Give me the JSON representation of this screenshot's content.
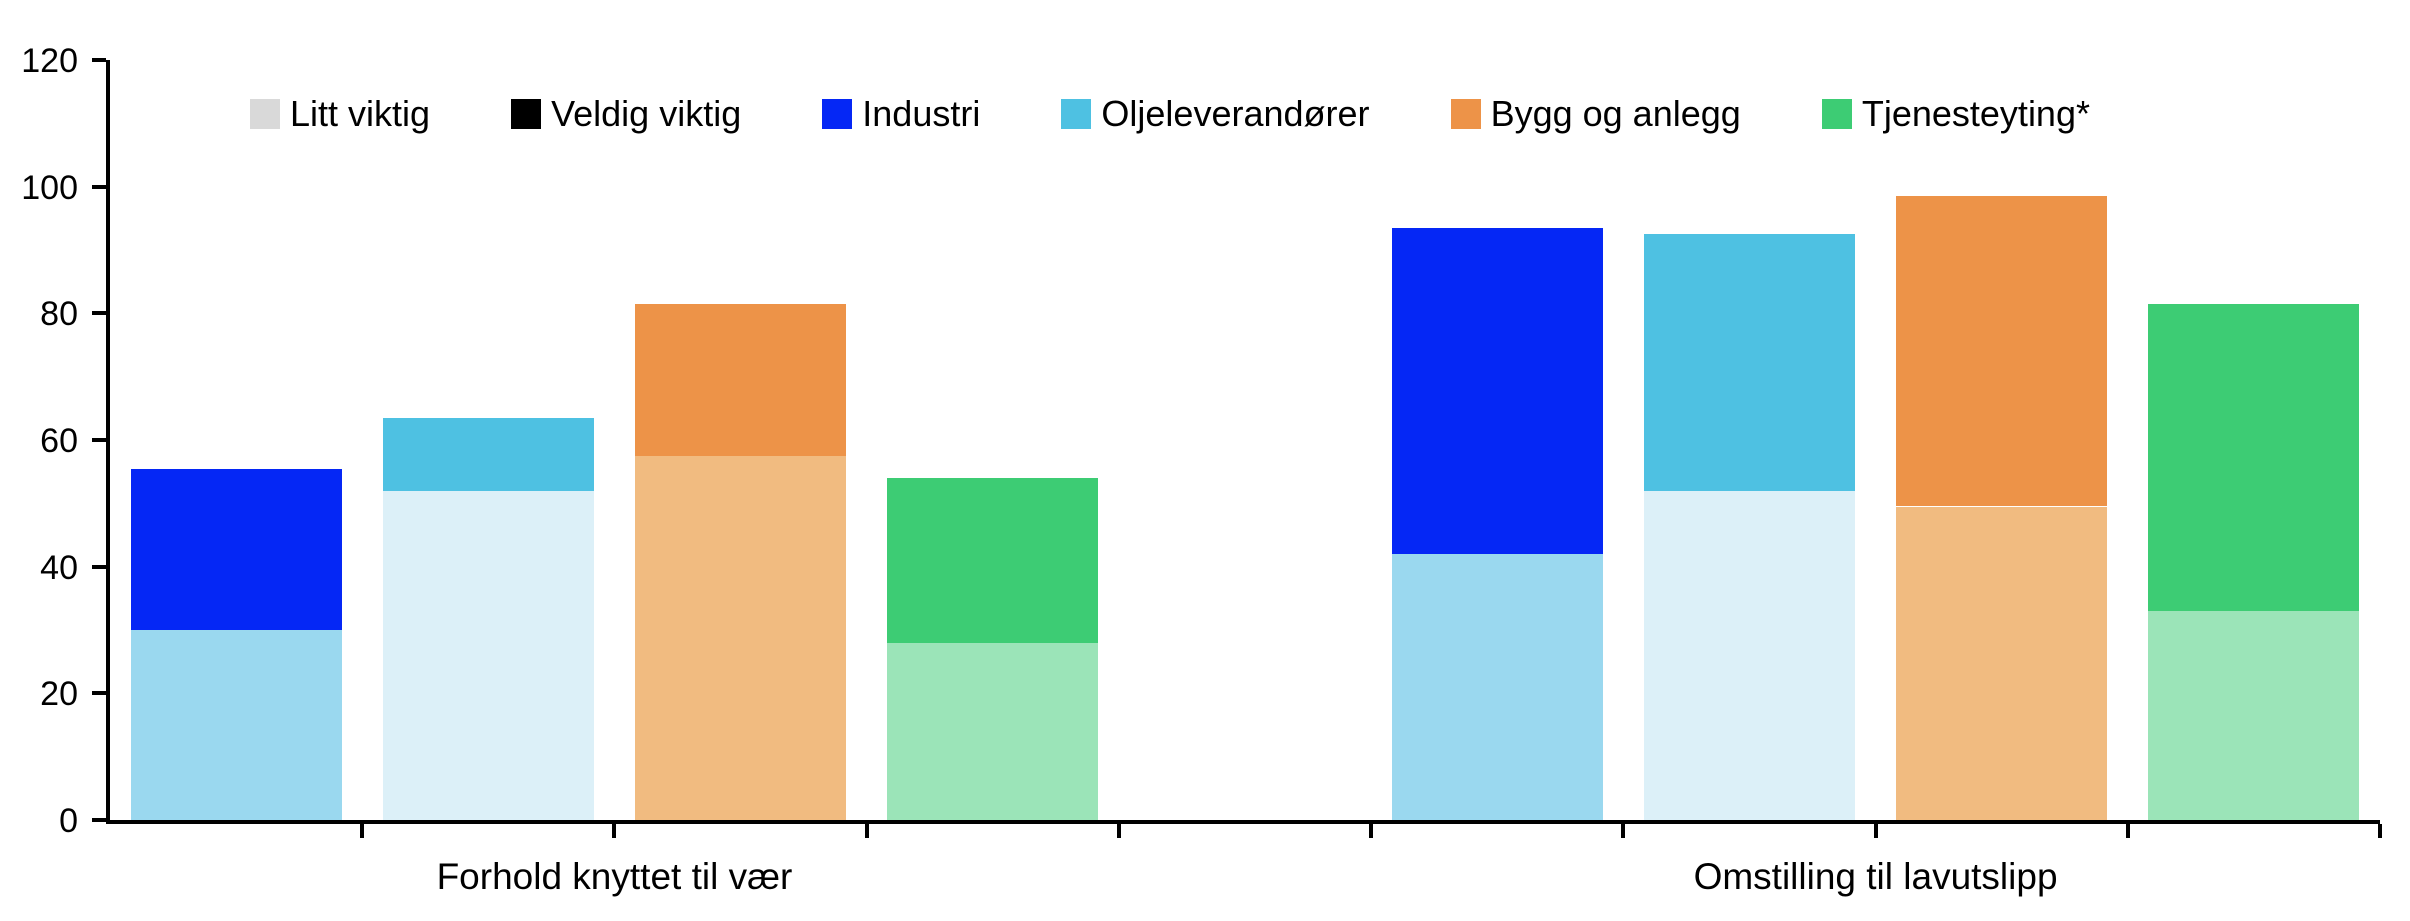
{
  "chart_data": {
    "type": "bar",
    "subtype": "grouped-stacked-bar",
    "title": "",
    "xlabel": "",
    "ylabel": "",
    "grid": false,
    "legend_position": "top",
    "y_axis": {
      "min": 0,
      "max": 120,
      "tick_step": 20,
      "ticks": [
        0,
        20,
        40,
        60,
        80,
        100,
        120
      ]
    },
    "stack_meaning": {
      "bottom_segment": "Litt viktig",
      "top_segment": "Veldig viktig"
    },
    "legend": [
      {
        "label": "Litt viktig",
        "color": "#D9D9D9"
      },
      {
        "label": "Veldig viktig",
        "color": "#000000"
      },
      {
        "label": "Industri",
        "color": "#0527F5"
      },
      {
        "label": "Oljeleverandører",
        "color": "#4EC1E2"
      },
      {
        "label": "Bygg og anlegg",
        "color": "#ED9348"
      },
      {
        "label": "Tjenesteyting*",
        "color": "#3DCC74"
      }
    ],
    "colors": {
      "Industri": {
        "dark": "#0527F5",
        "light": "#9AD8EF"
      },
      "Oljeleverandører": {
        "dark": "#4EC1E2",
        "light": "#DCF0F8"
      },
      "Bygg og anlegg": {
        "dark": "#ED9348",
        "light": "#F1BB80"
      },
      "Tjenesteyting*": {
        "dark": "#3DCC74",
        "light": "#9BE4B8"
      }
    },
    "groups": [
      {
        "label": "Forhold knyttet til vær",
        "bars": [
          {
            "sector": "Industri",
            "litt_viktig": 30,
            "veldig_viktig": 25.5,
            "total": 55.5
          },
          {
            "sector": "Oljeleverandører",
            "litt_viktig": 52,
            "veldig_viktig": 11.5,
            "total": 63.5
          },
          {
            "sector": "Bygg og anlegg",
            "litt_viktig": 57.5,
            "veldig_viktig": 24,
            "total": 81.5
          },
          {
            "sector": "Tjenesteyting*",
            "litt_viktig": 28,
            "veldig_viktig": 26,
            "total": 54
          }
        ]
      },
      {
        "label": "Omstilling til lavutslipp",
        "bars": [
          {
            "sector": "Industri",
            "litt_viktig": 42,
            "veldig_viktig": 51.5,
            "total": 93.5
          },
          {
            "sector": "Oljeleverandører",
            "litt_viktig": 52,
            "veldig_viktig": 40.5,
            "total": 92.5
          },
          {
            "sector": "Bygg og anlegg",
            "litt_viktig": 49.5,
            "veldig_viktig": 49,
            "total": 98.5
          },
          {
            "sector": "Tjenesteyting*",
            "litt_viktig": 33,
            "veldig_viktig": 48.5,
            "total": 81.5
          }
        ]
      }
    ]
  }
}
